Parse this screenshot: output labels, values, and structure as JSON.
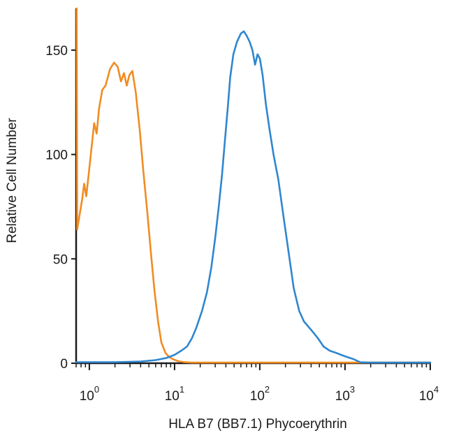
{
  "chart_data": {
    "type": "line",
    "title": "",
    "xlabel": "HLA B7 (BB7.1) Phycoerythrin",
    "ylabel": "Relative Cell Number",
    "x_scale": "log",
    "xlim": [
      0.7,
      10000
    ],
    "ylim": [
      0,
      170
    ],
    "x_ticks": [
      {
        "base": "10",
        "exp": "0",
        "value": 1
      },
      {
        "base": "10",
        "exp": "1",
        "value": 10
      },
      {
        "base": "10",
        "exp": "2",
        "value": 100
      },
      {
        "base": "10",
        "exp": "3",
        "value": 1000
      },
      {
        "base": "10",
        "exp": "4",
        "value": 10000
      }
    ],
    "y_ticks": [
      {
        "label": "0",
        "value": 0
      },
      {
        "label": "50",
        "value": 50
      },
      {
        "label": "100",
        "value": 100
      },
      {
        "label": "150",
        "value": 150
      }
    ],
    "grid": false,
    "legend": "none",
    "series": [
      {
        "color": "#f08c22",
        "points": [
          [
            0.71,
            170
          ],
          [
            0.72,
            64
          ],
          [
            0.76,
            70
          ],
          [
            0.82,
            78
          ],
          [
            0.87,
            86
          ],
          [
            0.92,
            80
          ],
          [
            0.98,
            90
          ],
          [
            1.06,
            103
          ],
          [
            1.14,
            115
          ],
          [
            1.22,
            110
          ],
          [
            1.3,
            122
          ],
          [
            1.42,
            131
          ],
          [
            1.55,
            133
          ],
          [
            1.75,
            141
          ],
          [
            1.95,
            144
          ],
          [
            2.15,
            142
          ],
          [
            2.35,
            135
          ],
          [
            2.55,
            139
          ],
          [
            2.75,
            133
          ],
          [
            2.95,
            138
          ],
          [
            3.2,
            140
          ],
          [
            3.5,
            130
          ],
          [
            3.9,
            112
          ],
          [
            4.3,
            92
          ],
          [
            4.8,
            72
          ],
          [
            5.3,
            52
          ],
          [
            5.8,
            35
          ],
          [
            6.4,
            20
          ],
          [
            7.0,
            10
          ],
          [
            7.8,
            5
          ],
          [
            8.6,
            3
          ],
          [
            9.5,
            2
          ],
          [
            11,
            1
          ],
          [
            13,
            0.5
          ],
          [
            16,
            0.3
          ],
          [
            30,
            0.3
          ],
          [
            100,
            0.3
          ],
          [
            1000,
            0.3
          ],
          [
            10000,
            0.3
          ]
        ]
      },
      {
        "color": "#2f86cf",
        "points": [
          [
            0.7,
            0.5
          ],
          [
            2,
            0.5
          ],
          [
            4,
            0.8
          ],
          [
            6,
            1.5
          ],
          [
            8,
            2.5
          ],
          [
            10,
            4
          ],
          [
            12,
            6
          ],
          [
            14,
            8
          ],
          [
            16,
            12
          ],
          [
            18,
            17
          ],
          [
            21,
            25
          ],
          [
            24,
            34
          ],
          [
            27,
            46
          ],
          [
            30,
            60
          ],
          [
            33,
            75
          ],
          [
            36,
            90
          ],
          [
            39,
            107
          ],
          [
            42,
            122
          ],
          [
            45,
            137
          ],
          [
            49,
            148
          ],
          [
            54,
            154
          ],
          [
            60,
            158
          ],
          [
            65,
            159
          ],
          [
            70,
            157
          ],
          [
            76,
            154
          ],
          [
            82,
            150
          ],
          [
            88,
            143
          ],
          [
            94,
            148
          ],
          [
            100,
            146
          ],
          [
            108,
            138
          ],
          [
            118,
            124
          ],
          [
            130,
            112
          ],
          [
            145,
            100
          ],
          [
            165,
            88
          ],
          [
            190,
            70
          ],
          [
            220,
            52
          ],
          [
            250,
            36
          ],
          [
            290,
            25
          ],
          [
            330,
            20
          ],
          [
            400,
            16
          ],
          [
            480,
            12
          ],
          [
            560,
            8
          ],
          [
            660,
            6
          ],
          [
            780,
            5
          ],
          [
            900,
            4
          ],
          [
            1050,
            3
          ],
          [
            1250,
            2
          ],
          [
            1500,
            0.5
          ],
          [
            2000,
            0.3
          ],
          [
            4000,
            0.3
          ],
          [
            10000,
            0.3
          ]
        ]
      }
    ]
  }
}
